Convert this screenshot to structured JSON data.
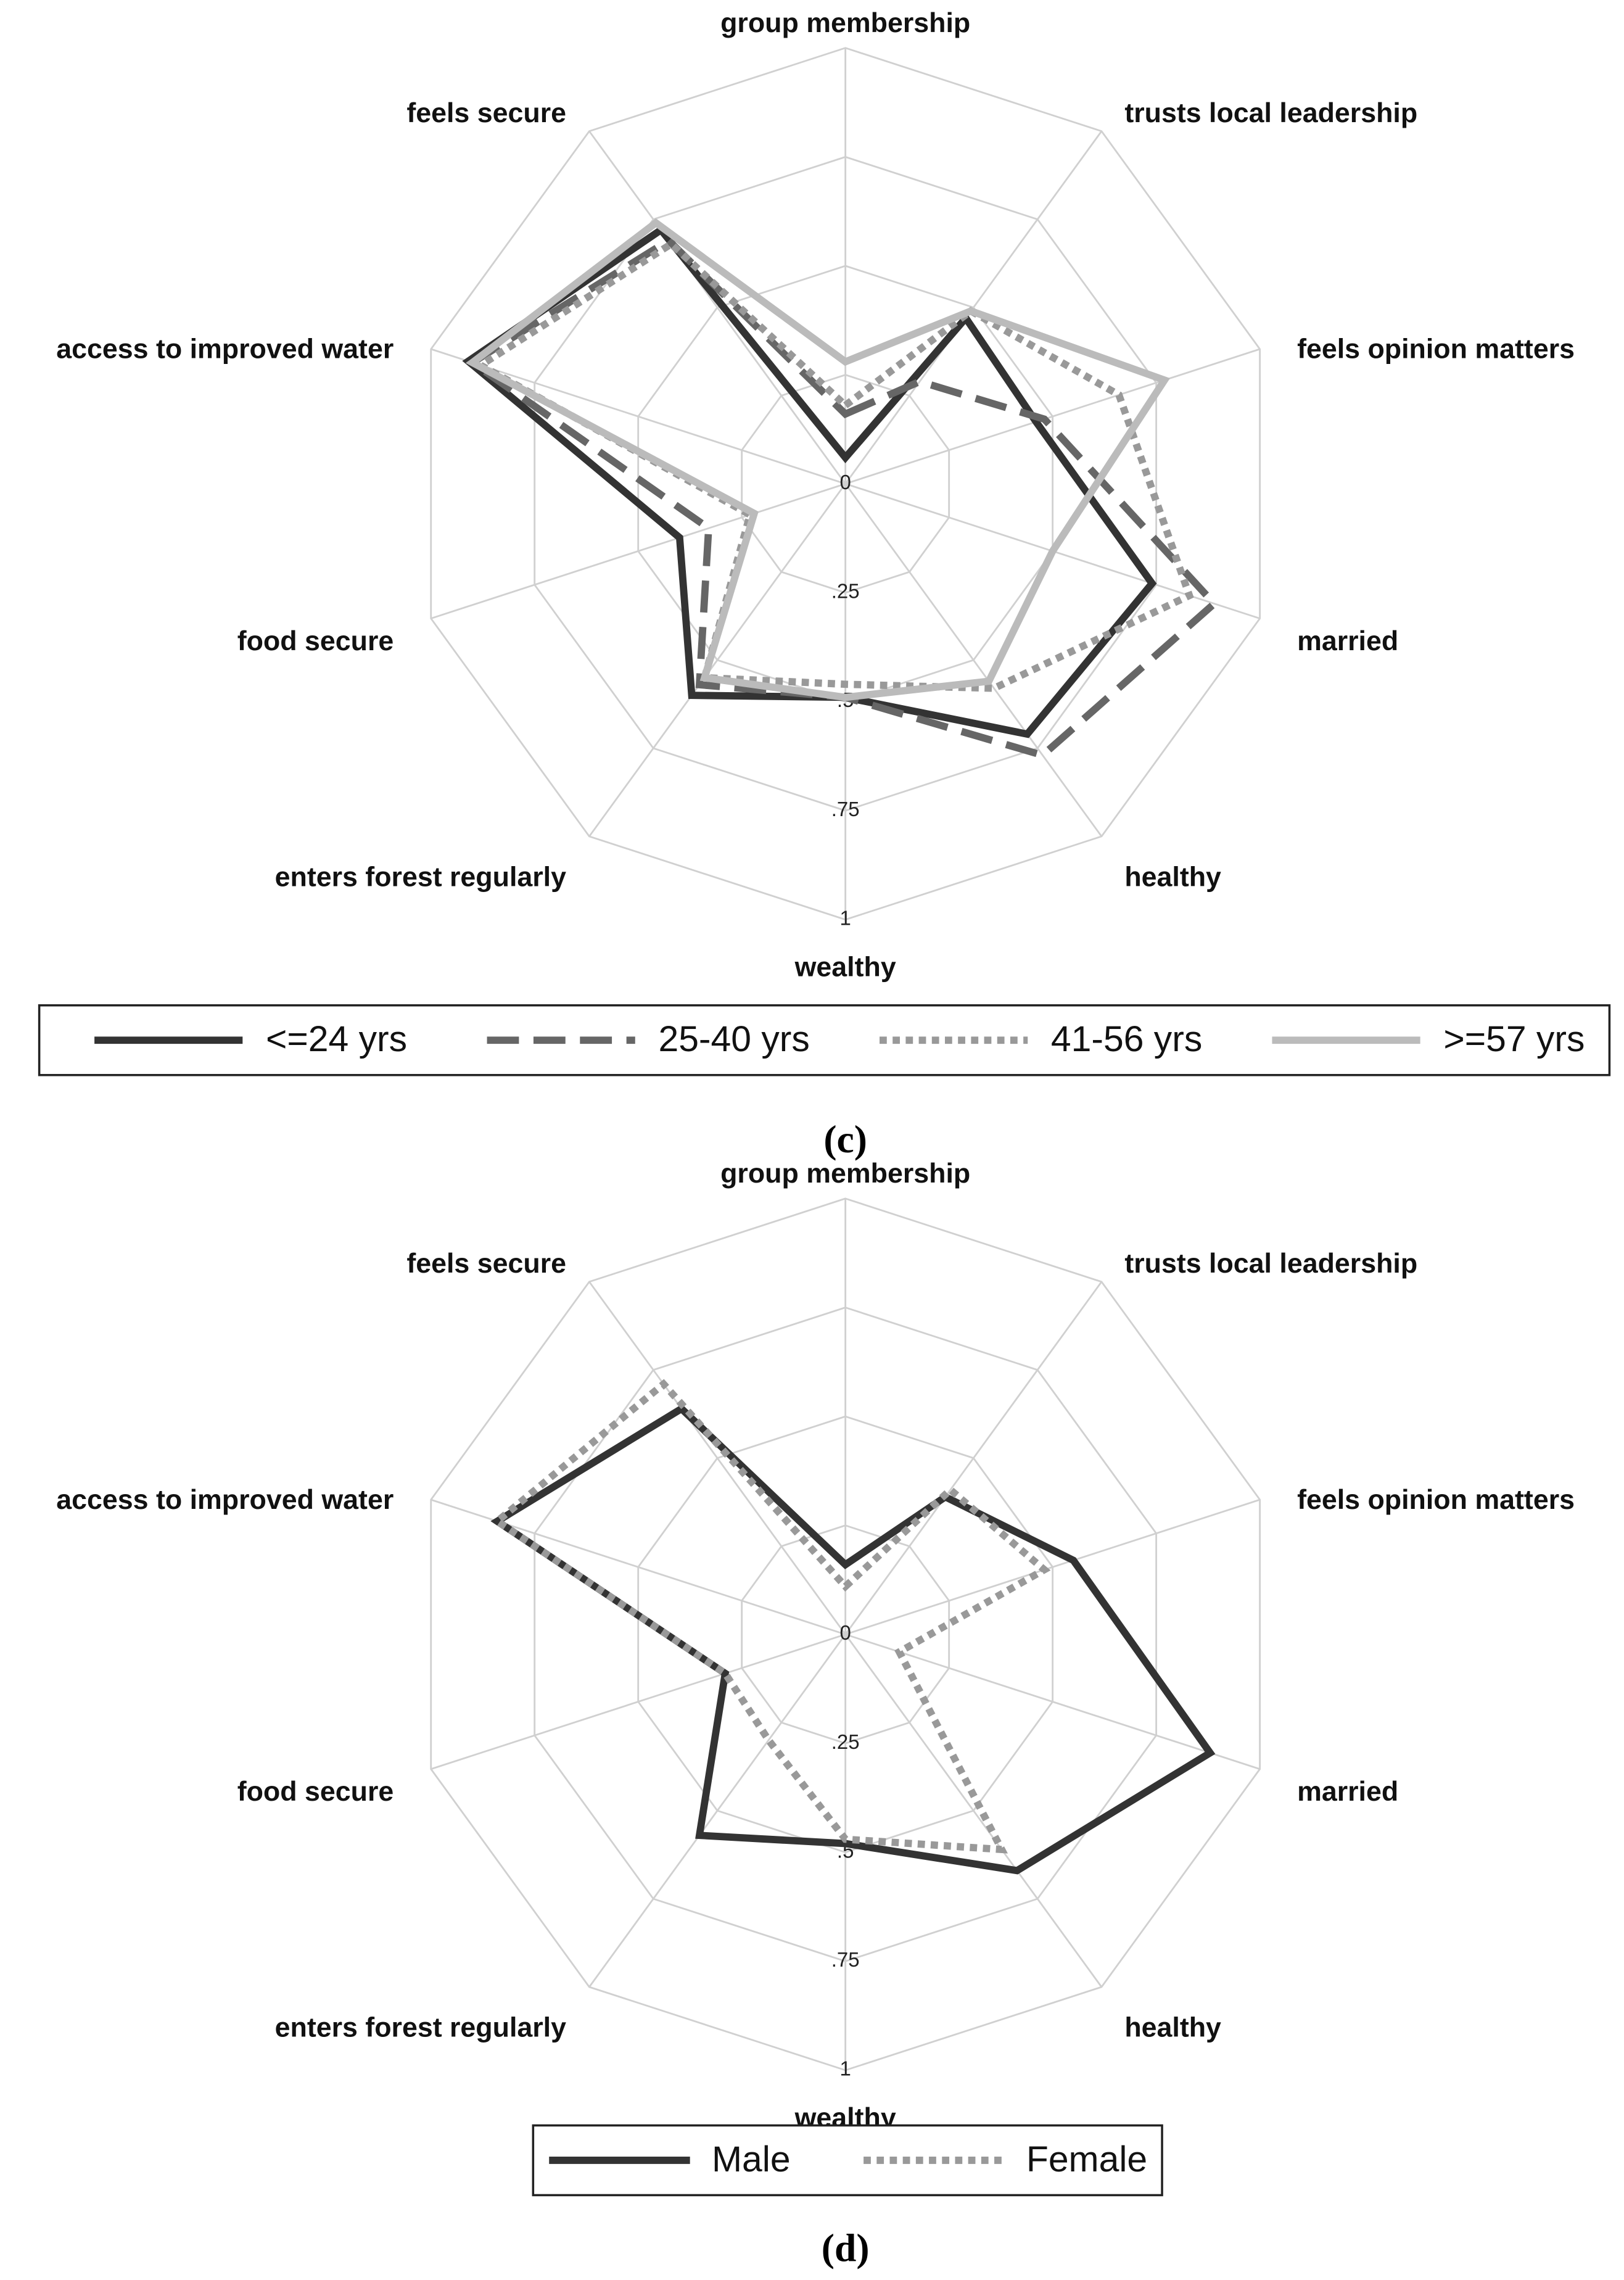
{
  "chart_data": [
    {
      "type": "radar",
      "categories": [
        "group membership",
        "trusts local leadership",
        "feels opinion matters",
        "married",
        "healthy",
        "wealthy",
        "enters forest regularly",
        "food secure",
        "access to improved water",
        "feels secure"
      ],
      "rlim": [
        0,
        1
      ],
      "rticks": [
        0,
        {
          "value": 0.25,
          "label": ".25"
        },
        {
          "value": 0.5,
          "label": ".5"
        },
        {
          "value": 0.75,
          "label": ".75"
        },
        1
      ],
      "grid": true,
      "legend": "bottom",
      "series": [
        {
          "name": "<=24 yrs",
          "color": "#333333",
          "dash": "solid",
          "values": [
            0.06,
            0.47,
            0.46,
            0.74,
            0.71,
            0.49,
            0.6,
            0.4,
            0.91,
            0.72
          ]
        },
        {
          "name": "25-40 yrs",
          "color": "#666666",
          "dash": "dashed",
          "values": [
            0.16,
            0.29,
            0.48,
            0.89,
            0.77,
            0.49,
            0.57,
            0.33,
            0.9,
            0.69
          ]
        },
        {
          "name": "41-56 yrs",
          "color": "#999999",
          "dash": "dotted",
          "values": [
            0.18,
            0.49,
            0.66,
            0.83,
            0.58,
            0.46,
            0.55,
            0.23,
            0.88,
            0.68
          ]
        },
        {
          "name": ">=57 yrs",
          "color": "#bbbbbb",
          "dash": "solid",
          "values": [
            0.28,
            0.49,
            0.77,
            0.5,
            0.56,
            0.49,
            0.55,
            0.22,
            0.9,
            0.74
          ]
        }
      ],
      "caption": "(c)"
    },
    {
      "type": "radar",
      "categories": [
        "group membership",
        "trusts local leadership",
        "feels opinion matters",
        "married",
        "healthy",
        "wealthy",
        "enters forest regularly",
        "food secure",
        "access to improved water",
        "feels secure"
      ],
      "rlim": [
        0,
        1
      ],
      "rticks": [
        0,
        {
          "value": 0.25,
          "label": ".25"
        },
        {
          "value": 0.5,
          "label": ".5"
        },
        {
          "value": 0.75,
          "label": ".75"
        },
        1
      ],
      "grid": true,
      "legend": "bottom",
      "series": [
        {
          "name": "Male",
          "color": "#333333",
          "dash": "solid",
          "values": [
            0.16,
            0.39,
            0.55,
            0.88,
            0.67,
            0.48,
            0.57,
            0.29,
            0.84,
            0.64
          ]
        },
        {
          "name": "Female",
          "color": "#999999",
          "dash": "dotted",
          "values": [
            0.11,
            0.41,
            0.48,
            0.13,
            0.61,
            0.47,
            0.3,
            0.29,
            0.84,
            0.71
          ]
        }
      ],
      "caption": "(d)"
    }
  ]
}
